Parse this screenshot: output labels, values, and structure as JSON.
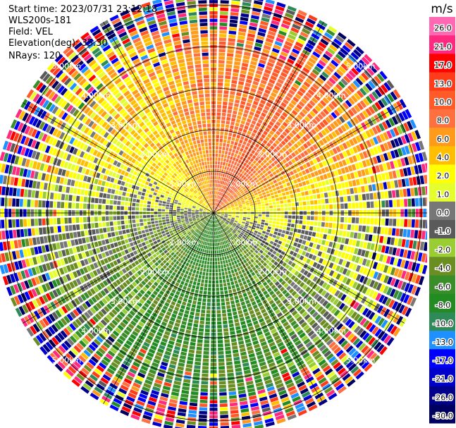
{
  "header": {
    "start_time": "Start time: 2023/07/31 23:12:18",
    "instrument": "WLS200s-181",
    "field": "Field: VEL",
    "elevation": "Elevation(deg): 35.30",
    "nrays": "NRays: 120"
  },
  "colorbar": {
    "unit": "m/s",
    "ticks": [
      "26.0",
      "21.0",
      "17.0",
      "13.0",
      "10.0",
      "8.0",
      "6.0",
      "4.0",
      "2.0",
      "1.0",
      "0.0",
      "-1.0",
      "-2.0",
      "-4.0",
      "-6.0",
      "-8.0",
      "-10.0",
      "-13.0",
      "-17.0",
      "-21.0",
      "-26.0",
      "-30.0"
    ],
    "bins": [
      {
        "from": 26,
        "to": 30,
        "color": "#ff69b4"
      },
      {
        "from": 21,
        "to": 26,
        "color": "#ff2a7f"
      },
      {
        "from": 17,
        "to": 21,
        "color": "#ff0000"
      },
      {
        "from": 13,
        "to": 17,
        "color": "#ff3b1a"
      },
      {
        "from": 10,
        "to": 13,
        "color": "#ff5a28"
      },
      {
        "from": 8,
        "to": 10,
        "color": "#ff7040"
      },
      {
        "from": 6,
        "to": 8,
        "color": "#ff9a1a"
      },
      {
        "from": 4,
        "to": 6,
        "color": "#ffbf00"
      },
      {
        "from": 2,
        "to": 4,
        "color": "#ffff00"
      },
      {
        "from": 1,
        "to": 2,
        "color": "#e5ff2e"
      },
      {
        "from": 0,
        "to": 1,
        "color": "#777777"
      },
      {
        "from": -1,
        "to": 0,
        "color": "#5a5a5a"
      },
      {
        "from": -2,
        "to": -1,
        "color": "#9acd32"
      },
      {
        "from": -4,
        "to": -2,
        "color": "#6b8e23"
      },
      {
        "from": -6,
        "to": -4,
        "color": "#3a8e2a"
      },
      {
        "from": -8,
        "to": -6,
        "color": "#228b22"
      },
      {
        "from": -10,
        "to": -8,
        "color": "#2e8b57"
      },
      {
        "from": -13,
        "to": -10,
        "color": "#1e90ff"
      },
      {
        "from": -17,
        "to": -13,
        "color": "#0000ff"
      },
      {
        "from": -21,
        "to": -17,
        "color": "#0000cd"
      },
      {
        "from": -26,
        "to": -21,
        "color": "#00008b"
      },
      {
        "from": -30,
        "to": -26,
        "color": "#000060"
      }
    ]
  },
  "chart_data": {
    "type": "heatmap",
    "subtype": "polar_ppi",
    "field": "VEL",
    "units": "m/s",
    "nrays": 120,
    "elevation_deg": 35.3,
    "range_rings_km": [
      1,
      2,
      3,
      4,
      5
    ],
    "ring_labels": [
      "1.00km",
      "2.00km",
      "3.00km",
      "4.00km",
      "5.00km"
    ],
    "color_range": [
      -30,
      26
    ],
    "sector_means_mps": [
      {
        "azimuth_deg": 0,
        "value": 8
      },
      {
        "azimuth_deg": 30,
        "value": 10
      },
      {
        "azimuth_deg": 60,
        "value": 7
      },
      {
        "azimuth_deg": 90,
        "value": 2
      },
      {
        "azimuth_deg": 120,
        "value": 0
      },
      {
        "azimuth_deg": 150,
        "value": -4
      },
      {
        "azimuth_deg": 180,
        "value": -6
      },
      {
        "azimuth_deg": 210,
        "value": -5
      },
      {
        "azimuth_deg": 240,
        "value": -2
      },
      {
        "azimuth_deg": 270,
        "value": 0
      },
      {
        "azimuth_deg": 300,
        "value": 3
      },
      {
        "azimuth_deg": 330,
        "value": 5
      }
    ],
    "noise_beyond_km": 4.5
  }
}
